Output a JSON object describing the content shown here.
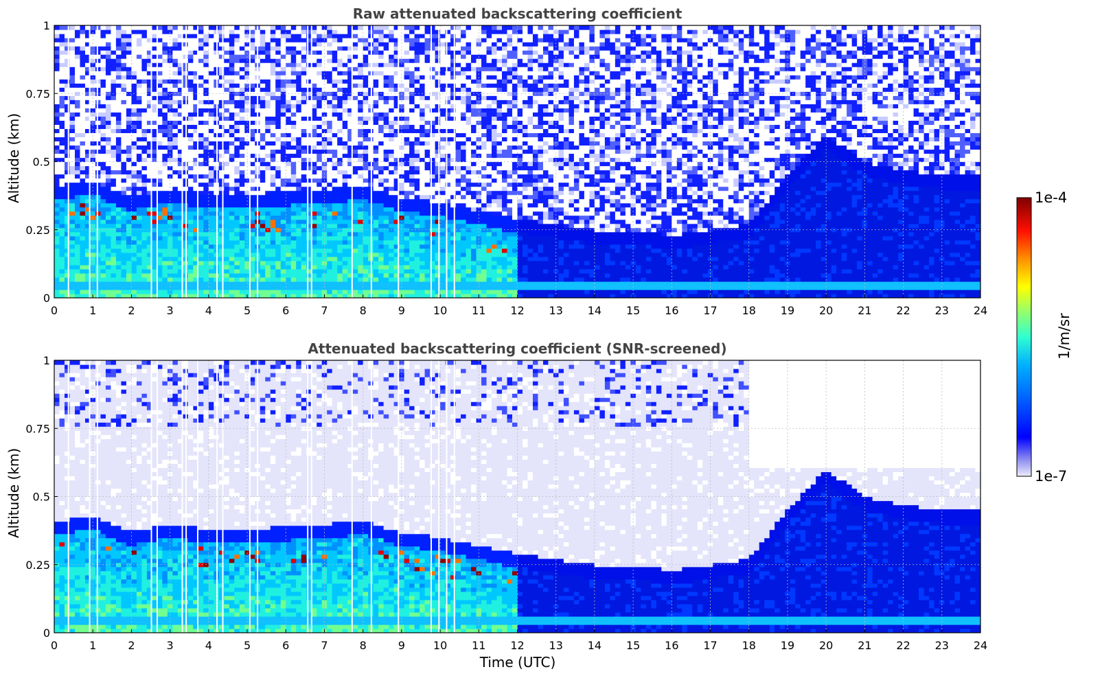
{
  "chart_data": [
    {
      "type": "heatmap",
      "title": "Raw attenuated backscattering coefficient",
      "xlabel": "",
      "ylabel": "Altitude (km)",
      "xlim": [
        0,
        24
      ],
      "ylim": [
        0,
        1
      ],
      "xticks": [
        "0",
        "1",
        "2",
        "3",
        "4",
        "5",
        "6",
        "7",
        "8",
        "9",
        "10",
        "11",
        "12",
        "13",
        "14",
        "15",
        "16",
        "17",
        "18",
        "19",
        "20",
        "21",
        "22",
        "23",
        "24"
      ],
      "yticks": [
        "0",
        "0.25",
        "0.5",
        "0.75",
        "1"
      ],
      "grid": true,
      "screened": false,
      "boundary_layer_top_km": [
        {
          "t": 0,
          "h": 0.36
        },
        {
          "t": 1,
          "h": 0.38
        },
        {
          "t": 2,
          "h": 0.32
        },
        {
          "t": 3,
          "h": 0.35
        },
        {
          "t": 4,
          "h": 0.33
        },
        {
          "t": 5,
          "h": 0.33
        },
        {
          "t": 6,
          "h": 0.34
        },
        {
          "t": 7,
          "h": 0.35
        },
        {
          "t": 8,
          "h": 0.36
        },
        {
          "t": 9,
          "h": 0.32
        },
        {
          "t": 10,
          "h": 0.3
        },
        {
          "t": 11,
          "h": 0.27
        },
        {
          "t": 12,
          "h": 0.24
        },
        {
          "t": 13,
          "h": 0.22
        },
        {
          "t": 14,
          "h": 0.2
        },
        {
          "t": 15,
          "h": 0.2
        },
        {
          "t": 16,
          "h": 0.18
        },
        {
          "t": 17,
          "h": 0.2
        },
        {
          "t": 18,
          "h": 0.22
        },
        {
          "t": 19,
          "h": 0.4
        },
        {
          "t": 20,
          "h": 0.55
        },
        {
          "t": 21,
          "h": 0.45
        },
        {
          "t": 22,
          "h": 0.42
        },
        {
          "t": 23,
          "h": 0.4
        },
        {
          "t": 24,
          "h": 0.4
        }
      ]
    },
    {
      "type": "heatmap",
      "title": "Attenuated backscattering coefficient (SNR-screened)",
      "xlabel": "Time (UTC)",
      "ylabel": "Altitude (km)",
      "xlim": [
        0,
        24
      ],
      "ylim": [
        0,
        1
      ],
      "xticks": [
        "0",
        "1",
        "2",
        "3",
        "4",
        "5",
        "6",
        "7",
        "8",
        "9",
        "10",
        "11",
        "12",
        "13",
        "14",
        "15",
        "16",
        "17",
        "18",
        "19",
        "20",
        "21",
        "22",
        "23",
        "24"
      ],
      "yticks": [
        "0",
        "0.25",
        "0.5",
        "0.75",
        "1"
      ],
      "grid": true,
      "screened": true
    }
  ],
  "colorbar": {
    "label": "1/m/sr",
    "max_label": "1e-4",
    "min_label": "1e-7",
    "scale": "log",
    "colormap": "jet",
    "range": [
      1e-07,
      0.0001
    ]
  },
  "colors": {
    "title": "#444444",
    "grid": "#bbbbbb",
    "low_fill": "#e6e6fb"
  }
}
